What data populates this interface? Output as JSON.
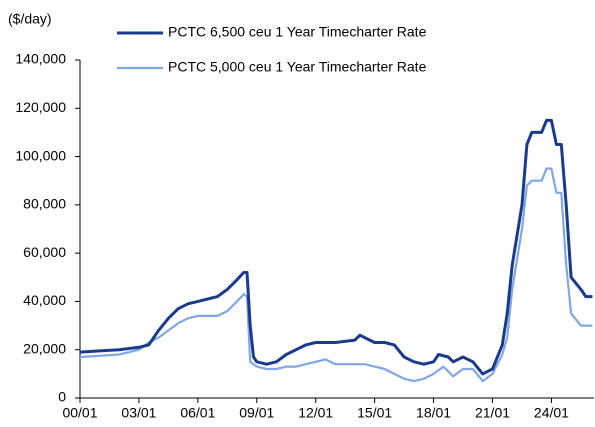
{
  "chart_data": {
    "type": "line",
    "y_label": "($/day)",
    "ylim": [
      0,
      140000
    ],
    "yticks": [
      {
        "value": 0,
        "label": "0"
      },
      {
        "value": 20000,
        "label": "20,000"
      },
      {
        "value": 40000,
        "label": "40,000"
      },
      {
        "value": 60000,
        "label": "60,000"
      },
      {
        "value": 80000,
        "label": "80,000"
      },
      {
        "value": 100000,
        "label": "100,000"
      },
      {
        "value": 120000,
        "label": "120,000"
      },
      {
        "value": 140000,
        "label": "140,000"
      }
    ],
    "xlim": [
      "00/01",
      "26/03"
    ],
    "xticks": [
      "00/01",
      "03/01",
      "06/01",
      "09/01",
      "12/01",
      "15/01",
      "18/01",
      "21/01",
      "24/01"
    ],
    "legend": "top",
    "series": [
      {
        "name": "PCTC 6,500 ceu 1 Year Timecharter Rate",
        "color": "#1a3a8c",
        "x": [
          "00/01",
          "01/01",
          "02/01",
          "03/01",
          "03/07",
          "04/01",
          "04/07",
          "05/01",
          "05/07",
          "06/01",
          "06/07",
          "07/01",
          "07/07",
          "08/01",
          "08/05",
          "08/07",
          "08/09",
          "08/11",
          "09/01",
          "09/07",
          "10/01",
          "10/07",
          "11/01",
          "11/07",
          "12/01",
          "12/07",
          "13/01",
          "14/01",
          "14/04",
          "14/10",
          "15/01",
          "15/07",
          "16/01",
          "16/07",
          "17/01",
          "17/07",
          "18/01",
          "18/04",
          "18/10",
          "19/01",
          "19/07",
          "20/01",
          "20/07",
          "21/01",
          "21/07",
          "21/10",
          "22/01",
          "22/07",
          "22/10",
          "23/01",
          "23/07",
          "23/10",
          "24/01",
          "24/04",
          "24/07",
          "24/10",
          "25/01",
          "25/07",
          "25/10",
          "26/02"
        ],
        "values": [
          19000,
          19500,
          20000,
          21000,
          22000,
          28000,
          33000,
          37000,
          39000,
          40000,
          41000,
          42000,
          45000,
          49000,
          52000,
          52000,
          30000,
          17000,
          15000,
          14000,
          15000,
          18000,
          20000,
          22000,
          23000,
          23000,
          23000,
          24000,
          26000,
          24000,
          23000,
          23000,
          22000,
          17000,
          15000,
          14000,
          15000,
          18000,
          17000,
          15000,
          17000,
          15000,
          10000,
          12000,
          22000,
          35000,
          55000,
          80000,
          105000,
          110000,
          110000,
          115000,
          115000,
          105000,
          105000,
          80000,
          50000,
          45000,
          42000,
          42000
        ]
      },
      {
        "name": "PCTC 5,000 ceu 1 Year Timecharter Rate",
        "color": "#7fa6e6",
        "x": [
          "00/01",
          "01/01",
          "02/01",
          "03/01",
          "03/07",
          "04/01",
          "04/07",
          "05/01",
          "05/07",
          "06/01",
          "06/07",
          "07/01",
          "07/07",
          "08/01",
          "08/05",
          "08/07",
          "08/09",
          "09/01",
          "09/07",
          "10/01",
          "10/07",
          "11/01",
          "11/07",
          "12/01",
          "12/07",
          "13/01",
          "14/01",
          "14/07",
          "15/01",
          "15/07",
          "16/01",
          "16/07",
          "17/01",
          "17/07",
          "18/01",
          "18/07",
          "19/01",
          "19/07",
          "20/01",
          "20/07",
          "21/01",
          "21/07",
          "21/10",
          "22/01",
          "22/07",
          "22/10",
          "23/01",
          "23/07",
          "23/10",
          "24/01",
          "24/04",
          "24/07",
          "24/10",
          "25/01",
          "25/07",
          "26/02"
        ],
        "values": [
          17000,
          17500,
          18000,
          20000,
          23000,
          25000,
          28000,
          31000,
          33000,
          34000,
          34000,
          34000,
          36000,
          40000,
          43000,
          42000,
          15000,
          13000,
          12000,
          12000,
          13000,
          13000,
          14000,
          15000,
          16000,
          14000,
          14000,
          14000,
          13000,
          12000,
          10000,
          8000,
          7000,
          8000,
          10000,
          13000,
          9000,
          12000,
          12000,
          7000,
          10000,
          18000,
          25000,
          45000,
          70000,
          88000,
          90000,
          90000,
          95000,
          95000,
          85000,
          85000,
          55000,
          35000,
          30000,
          30000
        ]
      }
    ]
  }
}
